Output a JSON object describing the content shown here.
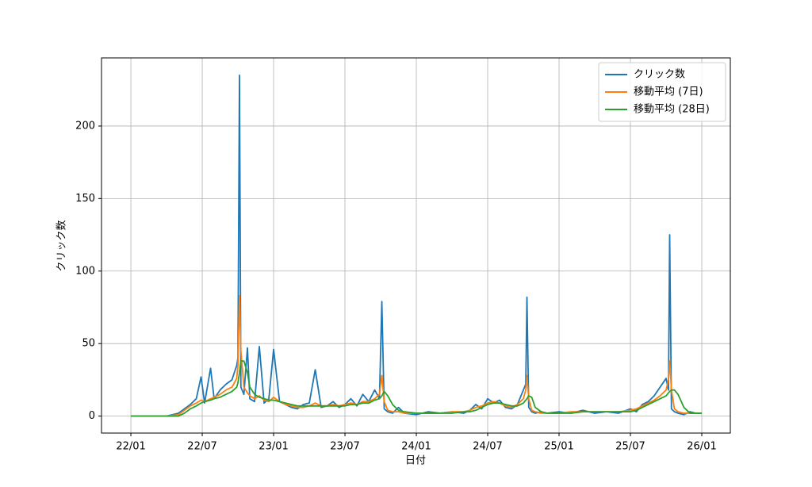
{
  "chart_data": {
    "type": "line",
    "xlabel": "日付",
    "ylabel": "クリック数",
    "x": [
      0,
      1,
      2,
      3,
      4,
      4.5,
      5,
      5.5,
      5.9,
      6.2,
      6.7,
      7,
      7.5,
      8,
      8.5,
      8.9,
      9.0,
      9.13,
      9.25,
      9.5,
      9.8,
      10,
      10.4,
      10.8,
      11.2,
      11.6,
      12,
      12.5,
      13,
      13.5,
      14,
      14.5,
      15,
      15.5,
      16,
      16.5,
      17,
      17.5,
      18,
      18.5,
      19,
      19.5,
      20,
      20.5,
      20.9,
      21.1,
      21.3,
      21.6,
      22,
      22.5,
      23,
      24,
      25,
      26,
      27,
      28,
      28.5,
      29,
      29.5,
      30,
      30.5,
      31,
      31.5,
      32,
      32.5,
      33,
      33.2,
      33.3,
      33.45,
      33.7,
      34,
      34.5,
      35,
      36,
      37,
      38,
      39,
      40,
      41,
      42,
      42.5,
      43,
      43.5,
      44,
      44.5,
      45,
      45.2,
      45.3,
      45.45,
      45.7,
      46,
      46.5,
      47,
      47.5,
      48
    ],
    "series": [
      {
        "name": "クリック数",
        "color": "#1f77b4",
        "values": [
          0,
          0,
          0,
          0,
          2,
          5,
          8,
          12,
          27,
          9,
          33,
          12,
          18,
          22,
          25,
          35,
          40,
          235,
          20,
          15,
          47,
          12,
          10,
          48,
          9,
          12,
          46,
          10,
          8,
          6,
          5,
          8,
          9,
          32,
          6,
          7,
          10,
          6,
          8,
          12,
          7,
          15,
          10,
          18,
          12,
          79,
          5,
          3,
          2,
          6,
          2,
          1,
          3,
          2,
          3,
          2,
          4,
          8,
          5,
          12,
          9,
          11,
          6,
          5,
          8,
          18,
          22,
          82,
          6,
          3,
          2,
          3,
          2,
          3,
          2,
          4,
          2,
          3,
          2,
          5,
          3,
          8,
          10,
          14,
          20,
          26,
          18,
          125,
          5,
          3,
          2,
          1,
          3,
          2,
          2
        ]
      },
      {
        "name": "移動平均 (7日)",
        "color": "#ff7f0e",
        "values": [
          0,
          0,
          0,
          0,
          1,
          4,
          7,
          9,
          11,
          10,
          12,
          13,
          15,
          18,
          20,
          26,
          35,
          83,
          45,
          20,
          16,
          14,
          12,
          14,
          11,
          10,
          13,
          10,
          8,
          7,
          6,
          6,
          7,
          9,
          7,
          7,
          8,
          7,
          8,
          9,
          8,
          10,
          10,
          12,
          15,
          28,
          10,
          4,
          3,
          3,
          2,
          2,
          2,
          2,
          3,
          3,
          4,
          6,
          7,
          9,
          10,
          9,
          7,
          6,
          8,
          12,
          18,
          28,
          12,
          4,
          3,
          2,
          2,
          2,
          3,
          3,
          3,
          3,
          3,
          4,
          5,
          7,
          9,
          11,
          14,
          18,
          25,
          38,
          18,
          5,
          3,
          2,
          2,
          2,
          2
        ]
      },
      {
        "name": "移動平均 (28日)",
        "color": "#2ca02c",
        "values": [
          0,
          0,
          0,
          0,
          0,
          2,
          5,
          7,
          9,
          10,
          11,
          12,
          13,
          15,
          17,
          20,
          23,
          30,
          38,
          38,
          30,
          20,
          15,
          13,
          12,
          11,
          11,
          10,
          9,
          8,
          7,
          7,
          7,
          7,
          7,
          7,
          7,
          7,
          7,
          8,
          8,
          9,
          9,
          11,
          12,
          14,
          17,
          14,
          8,
          4,
          3,
          2,
          2,
          2,
          2,
          3,
          3,
          4,
          6,
          8,
          9,
          9,
          8,
          7,
          7,
          9,
          11,
          12,
          14,
          13,
          6,
          3,
          2,
          2,
          2,
          3,
          3,
          3,
          3,
          3,
          4,
          6,
          8,
          10,
          12,
          14,
          16,
          17,
          18,
          18,
          15,
          6,
          2,
          2,
          2
        ]
      }
    ],
    "xlim": [
      -2.47,
      50.4
    ],
    "xticks": [
      {
        "value": 0,
        "label": "22/01"
      },
      {
        "value": 6,
        "label": "22/07"
      },
      {
        "value": 12,
        "label": "23/01"
      },
      {
        "value": 18,
        "label": "23/07"
      },
      {
        "value": 24,
        "label": "24/01"
      },
      {
        "value": 30,
        "label": "24/07"
      },
      {
        "value": 36,
        "label": "25/01"
      },
      {
        "value": 42,
        "label": "25/07"
      },
      {
        "value": 48,
        "label": "26/01"
      }
    ],
    "ylim": [
      -11.7,
      247
    ],
    "yticks": [
      0,
      50,
      100,
      150,
      200
    ],
    "grid": true,
    "legend": "upper right"
  }
}
